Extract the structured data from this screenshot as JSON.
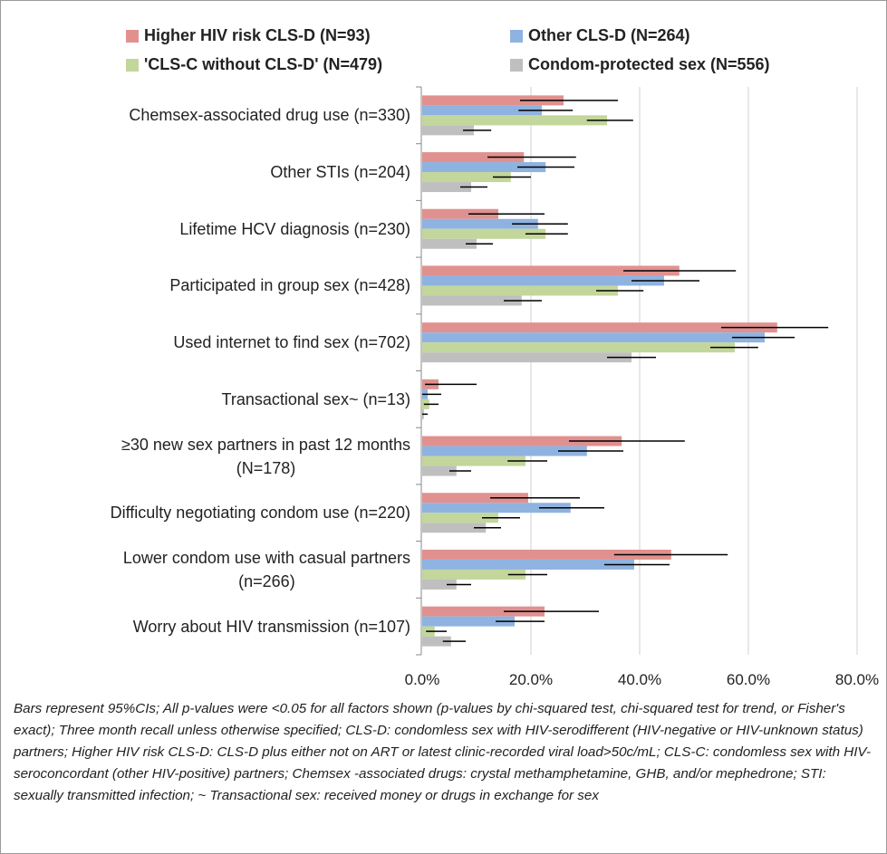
{
  "chart_data": {
    "type": "bar",
    "orientation": "horizontal",
    "categories": [
      "Chemsex-associated drug use (n=330)",
      "Other STIs (n=204)",
      "Lifetime HCV diagnosis (n=230)",
      "Participated in group sex (n=428)",
      "Used internet to find sex (n=702)",
      "Transactional sex~ (n=13)",
      "≥30 new sex partners in past 12 months\n(N=178)",
      "Difficulty negotiating condom use (n=220)",
      "Lower condom use with casual partners\n(n=266)",
      "Worry about HIV transmission (n=107)"
    ],
    "series": [
      {
        "name": "Higher HIV risk CLS-D (N=93)",
        "color": "#e0918f",
        "values": [
          26,
          18.7,
          14,
          47.3,
          65.3,
          3,
          36.7,
          19.5,
          45.8,
          22.5
        ],
        "ci_low": [
          18,
          12,
          8.5,
          37,
          55,
          0.5,
          27,
          12.5,
          35.3,
          15
        ],
        "ci_high": [
          36,
          28.3,
          22.5,
          57.7,
          74.7,
          10,
          48.3,
          29,
          56.2,
          32.5
        ]
      },
      {
        "name": "Other CLS-D (N=264)",
        "color": "#8fb3e0",
        "values": [
          22,
          22.7,
          21.3,
          44.5,
          63,
          1,
          30.3,
          27.3,
          39,
          17
        ],
        "ci_low": [
          17.7,
          17.5,
          16.5,
          38.5,
          57,
          0,
          25,
          21.5,
          33.5,
          13.5
        ],
        "ci_high": [
          27.7,
          28,
          26.8,
          51,
          68.5,
          3.5,
          37,
          33.5,
          45.5,
          22.5
        ]
      },
      {
        "name": "'CLS-C without CLS-D' (N=479)",
        "color": "#c3d69b",
        "values": [
          34,
          16.3,
          22.7,
          36,
          57.5,
          1.3,
          19,
          14,
          19,
          2.3
        ],
        "ci_low": [
          30.3,
          13,
          19,
          32,
          53,
          0.3,
          15.7,
          11,
          15.8,
          0.7
        ],
        "ci_high": [
          38.8,
          20,
          26.8,
          40.7,
          61.8,
          3,
          23,
          18,
          23,
          4.5
        ]
      },
      {
        "name": "Condom-protected sex (N=556)",
        "color": "#bfbfbf",
        "values": [
          9.5,
          9,
          10,
          18.3,
          38.5,
          0.3,
          6.3,
          11.7,
          6.3,
          5.3
        ],
        "ci_low": [
          7.5,
          7,
          8,
          15,
          34,
          0,
          5,
          9.5,
          4.5,
          3.8
        ],
        "ci_high": [
          12.7,
          12,
          13,
          22,
          43,
          1,
          9,
          14.5,
          9,
          8
        ]
      }
    ],
    "xlim": [
      0,
      80
    ],
    "xticks": [
      {
        "value": 0,
        "label": "0.0%"
      },
      {
        "value": 20,
        "label": "20.0%"
      },
      {
        "value": 40,
        "label": "40.0%"
      },
      {
        "value": 60,
        "label": "60.0%"
      },
      {
        "value": 80,
        "label": "80.0%"
      }
    ],
    "grid": true,
    "legend": "top",
    "footnote": "Bars represent 95%CIs; All p-values were <0.05 for all factors shown (p-values by chi-squared test, chi-squared test for trend, or Fisher's exact); Three month recall unless otherwise specified; CLS-D: condomless sex with HIV-serodifferent (HIV-negative or HIV-unknown status) partners; Higher HIV risk CLS-D: CLS-D plus either not on ART or latest clinic-recorded viral load>50c/mL; CLS-C: condomless sex with HIV-seroconcordant (other HIV-positive) partners; Chemsex -associated drugs: crystal methamphetamine, GHB, and/or mephedrone; STI: sexually transmitted infection; ~ Transactional sex: received money or drugs in exchange for sex"
  }
}
